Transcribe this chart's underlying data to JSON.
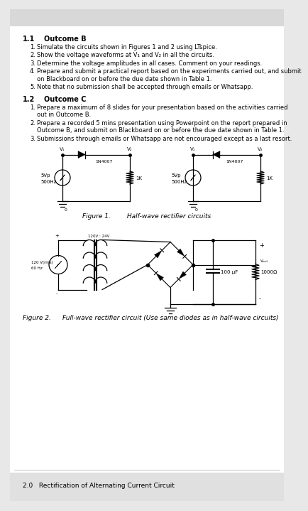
{
  "bg_color": "#e8e8e8",
  "page_bg": "#ffffff",
  "title_1": "1.1",
  "heading_1": "Outcome B",
  "items_1": [
    "Simulate the circuits shown in Figures 1 and 2 using LTspice.",
    "Show the voltage waveforms at V₁ and V₂ in all the circuits.",
    "Determine the voltage amplitudes in all cases. Comment on your readings.",
    "Prepare and submit a practical report based on the experiments carried out, and submit\n    on Blackboard on or before the due date shown in Table 1.",
    "Note that no submission shall be accepted through emails or Whatsapp."
  ],
  "title_2": "1.2",
  "heading_2": "Outcome C",
  "items_2": [
    "Prepare a maximum of 8 slides for your presentation based on the activities carried\n    out in Outcome B.",
    "Prepare a recorded 5 mins presentation using Powerpoint on the report prepared in\n    Outcome B, and submit on Blackboard on or before the due date shown in Table 1.",
    "Submissions through emails or Whatsapp are not encouraged except as a last resort."
  ],
  "fig1_caption": "Figure 1.        Half-wave rectifier circuits",
  "fig2_caption_a": "Figure 2.",
  "fig2_caption_b": "Full-wave rectifier circuit (Use same diodes as in half-wave circuits)",
  "footer_text": "2.0   Rectification of Alternating Current Circuit"
}
